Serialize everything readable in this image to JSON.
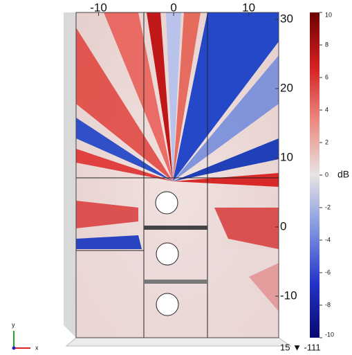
{
  "chart_data": {
    "type": "field",
    "xticks": [
      -10,
      0,
      10
    ],
    "yticks": [
      30,
      20,
      10,
      0,
      -10
    ],
    "xlim": [
      -13,
      14
    ],
    "ylim": [
      -16,
      31
    ],
    "corner_label": "15 ▼ -111",
    "colorbar": {
      "label": "dB",
      "lim": [
        -10,
        10
      ],
      "ticks": [
        10,
        8,
        6,
        4,
        2,
        0,
        -2,
        -4,
        -6,
        -8,
        -10
      ],
      "colors": [
        "#08086e",
        "#2233c8",
        "#7f95e0",
        "#e8e4e4",
        "#ec8a80",
        "#d42020",
        "#6e0000"
      ]
    },
    "axis_labels": {
      "y": "y",
      "x": "x"
    }
  }
}
